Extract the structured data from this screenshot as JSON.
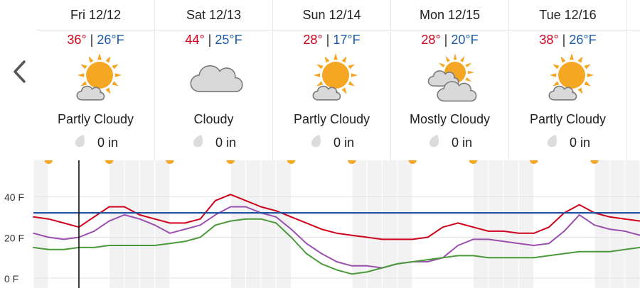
{
  "nav": {
    "prev_icon": "chevron-left-icon"
  },
  "days": [
    {
      "date": "Fri 12/12",
      "high": "36°",
      "low": "26°F",
      "sep": " | ",
      "icon": "partly-cloudy-icon",
      "condition": "Partly Cloudy",
      "precip": "0 in"
    },
    {
      "date": "Sat 12/13",
      "high": "44°",
      "low": "25°F",
      "sep": " | ",
      "icon": "cloudy-icon",
      "condition": "Cloudy",
      "precip": "0 in"
    },
    {
      "date": "Sun 12/14",
      "high": "28°",
      "low": "17°F",
      "sep": " | ",
      "icon": "partly-cloudy-icon",
      "condition": "Partly Cloudy",
      "precip": "0 in"
    },
    {
      "date": "Mon 12/15",
      "high": "28°",
      "low": "20°F",
      "sep": " | ",
      "icon": "mostly-cloudy-icon",
      "condition": "Mostly Cloudy",
      "precip": "0 in"
    },
    {
      "date": "Tue 12/16",
      "high": "38°",
      "low": "26°F",
      "sep": " | ",
      "icon": "partly-cloudy-icon",
      "condition": "Partly Cloudy",
      "precip": "0 in"
    }
  ],
  "colors": {
    "high": "#d0021b",
    "low": "#1a5aa8",
    "sun": "#f5a623",
    "sun_ray": "#f5a623",
    "cloud": "#d9d9d9",
    "cloud_stroke": "#7a7a7a",
    "drop": "#dcdcdc",
    "temp_line": "#d0021b",
    "feels_line": "#9b4fae",
    "dew_line": "#4b9a3a",
    "freezing_line": "#1f4fa0",
    "night_shade": "#f2f2f2",
    "cursor": "#000000"
  },
  "chart_data": {
    "type": "line",
    "x": [
      0,
      3,
      6,
      9,
      12,
      15,
      18,
      21,
      24,
      27,
      30,
      33,
      36,
      39,
      42,
      45,
      48,
      51,
      54,
      57,
      60,
      63,
      66,
      69,
      72,
      75,
      78,
      81,
      84,
      87,
      90,
      93,
      96,
      99,
      102,
      105,
      108,
      111,
      114,
      117,
      120
    ],
    "x_unit": "hours",
    "ylim": [
      0,
      55
    ],
    "yticks": [
      0,
      20,
      40
    ],
    "ytick_labels": [
      "0 F",
      "20 F",
      "40 F"
    ],
    "reference_line": {
      "value": 32
    },
    "cursor_x": 9,
    "series": [
      {
        "values": [
          30,
          29,
          27,
          25,
          30,
          35,
          35,
          31,
          29,
          27,
          27,
          29,
          38,
          41,
          38,
          35,
          33,
          30,
          27,
          24,
          22,
          21,
          20,
          19,
          19,
          19,
          20,
          25,
          27,
          25,
          23,
          23,
          22,
          22,
          25,
          32,
          36,
          32,
          30,
          29,
          28
        ]
      },
      {
        "values": [
          22,
          20,
          19,
          20,
          23,
          28,
          31,
          29,
          26,
          22,
          24,
          26,
          31,
          35,
          35,
          32,
          30,
          24,
          17,
          12,
          8,
          6,
          6,
          5,
          7,
          8,
          8,
          10,
          16,
          19,
          19,
          18,
          17,
          16,
          17,
          23,
          31,
          26,
          24,
          23,
          21
        ]
      },
      {
        "values": [
          15,
          14,
          14,
          15,
          15,
          16,
          16,
          16,
          16,
          17,
          18,
          20,
          26,
          28,
          29,
          29,
          27,
          20,
          12,
          7,
          4,
          2,
          3,
          5,
          7,
          8,
          9,
          10,
          11,
          11,
          10,
          10,
          10,
          10,
          11,
          12,
          13,
          13,
          13,
          14,
          15
        ]
      }
    ],
    "night_bands": [
      [
        -3,
        3
      ],
      [
        15,
        27
      ],
      [
        39,
        51
      ],
      [
        63,
        75
      ],
      [
        87,
        99
      ],
      [
        111,
        123
      ]
    ]
  }
}
